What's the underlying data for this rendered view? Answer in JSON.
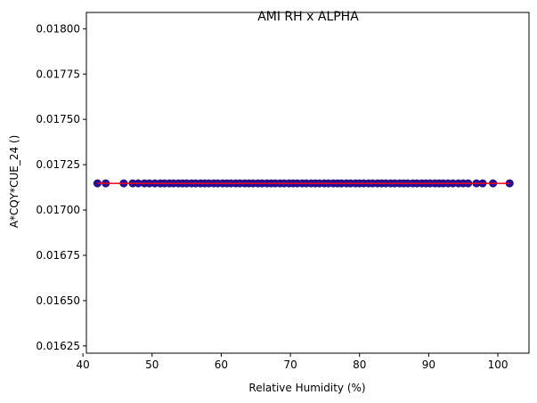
{
  "chart_data": {
    "type": "scatter",
    "title": "AMI RH x ALPHA",
    "xlabel": "Relative Humidity (%)",
    "ylabel": "A*CQY*CUE_24 ()",
    "xlim": [
      40.5,
      104.5
    ],
    "ylim": [
      0.01621,
      0.01809
    ],
    "xticks": [
      40,
      50,
      60,
      70,
      80,
      90,
      100
    ],
    "yticks": [
      0.01625,
      0.0165,
      0.01675,
      0.017,
      0.01725,
      0.0175,
      0.01775,
      0.018
    ],
    "grid": false,
    "series": [
      {
        "kind": "scatter",
        "color": "#2a0f9e",
        "edgecolor": "#1a0a70",
        "x": [
          42.1,
          43.3,
          45.9,
          47.2,
          48.0,
          48.9,
          49.6,
          50.4,
          51.2,
          51.8,
          52.5,
          53.1,
          53.8,
          54.4,
          55.0,
          55.7,
          56.3,
          57.0,
          57.6,
          58.2,
          58.9,
          59.5,
          60.2,
          60.8,
          61.4,
          62.1,
          62.7,
          63.4,
          64.0,
          64.6,
          65.3,
          65.9,
          66.6,
          67.2,
          67.8,
          68.5,
          69.1,
          69.8,
          70.4,
          71.0,
          71.7,
          72.3,
          73.0,
          73.6,
          74.2,
          74.9,
          75.5,
          76.2,
          76.8,
          77.4,
          78.1,
          78.7,
          79.4,
          80.0,
          80.6,
          81.3,
          81.9,
          82.6,
          83.2,
          83.8,
          84.5,
          85.1,
          85.8,
          86.4,
          87.0,
          87.7,
          88.3,
          89.0,
          89.6,
          90.2,
          90.9,
          91.5,
          92.1,
          92.8,
          93.5,
          94.3,
          95.0,
          95.7,
          96.9,
          97.8,
          99.3,
          101.7
        ],
        "y_constant": 0.017147
      },
      {
        "kind": "line",
        "color": "#e8001c",
        "x": [
          42.1,
          101.7
        ],
        "y": [
          0.017147,
          0.017147
        ]
      }
    ]
  }
}
